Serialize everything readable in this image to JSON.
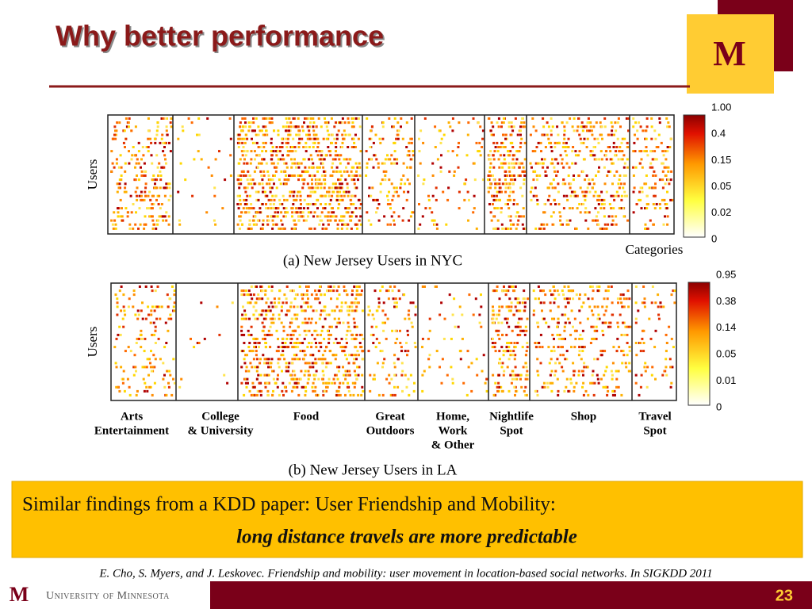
{
  "title": "Why better performance",
  "panels": [
    {
      "ylabel": "Users",
      "xlabel": "Categories",
      "caption": "(a) New Jersey Users in NYC",
      "colorbar": [
        "1.00",
        "0.4",
        "0.15",
        "0.05",
        "0.02",
        "0"
      ]
    },
    {
      "ylabel": "Users",
      "caption": "(b) New Jersey Users in LA",
      "colorbar": [
        "0.95",
        "0.38",
        "0.14",
        "0.05",
        "0.01",
        "0"
      ]
    }
  ],
  "categories": [
    [
      "Arts",
      "Entertainment"
    ],
    [
      "College",
      "& University"
    ],
    [
      "Food"
    ],
    [
      "Great",
      "Outdoors"
    ],
    [
      "Home,",
      "Work",
      "& Other"
    ],
    [
      "Nightlife",
      "Spot"
    ],
    [
      "Shop"
    ],
    [
      "Travel",
      "Spot"
    ]
  ],
  "callout": {
    "line1": "Similar findings from a KDD paper: User Friendship and Mobility:",
    "line2": "long distance travels are more predictable"
  },
  "citation": "E. Cho, S. Myers, and J. Leskovec. Friendship and mobility: user movement in location-based social networks. In SIGKDD 2011",
  "footer": {
    "university": "University of Minnesota",
    "page": "23"
  }
}
